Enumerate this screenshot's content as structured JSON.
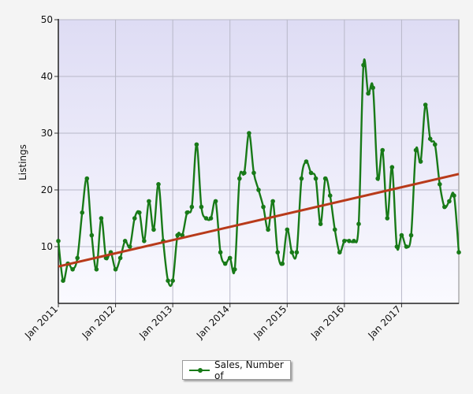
{
  "chart_data": {
    "type": "line",
    "ylabel": "Listings",
    "ylim": [
      0,
      50
    ],
    "yticks": [
      10,
      20,
      30,
      40,
      50
    ],
    "xlim": [
      0,
      84
    ],
    "x_tick_labels": [
      {
        "label": "Jan 2011",
        "x": 0
      },
      {
        "label": "Jan 2012",
        "x": 12
      },
      {
        "label": "Jan 2013",
        "x": 24
      },
      {
        "label": "Jan 2014",
        "x": 36
      },
      {
        "label": "Jan 2015",
        "x": 48
      },
      {
        "label": "Jan 2016",
        "x": 60
      },
      {
        "label": "Jan 2017",
        "x": 72
      }
    ],
    "grid": true,
    "legend_position": "bottom",
    "series": [
      {
        "name": "Sales, Number of",
        "color": "#187a18",
        "values": [
          11,
          4,
          7,
          6,
          8,
          16,
          22,
          12,
          6,
          15,
          8,
          9,
          6,
          8,
          11,
          10,
          15,
          16,
          11,
          18,
          13,
          21,
          11,
          4,
          4,
          12,
          12,
          16,
          17,
          28,
          17,
          15,
          15,
          18,
          9,
          7,
          8,
          6,
          22,
          23,
          30,
          23,
          20,
          17,
          13,
          18,
          9,
          7,
          13,
          9,
          9,
          22,
          25,
          23,
          22,
          14,
          22,
          19,
          13,
          9,
          11,
          11,
          11,
          14,
          42,
          37,
          38,
          22,
          27,
          15,
          24,
          10,
          12,
          10,
          12,
          27,
          25,
          35,
          29,
          28,
          21,
          17,
          18,
          19,
          9
        ]
      }
    ],
    "trendline": {
      "color": "#b83a1a",
      "start": 6.5,
      "end": 22.8
    }
  },
  "legend": {
    "label": "Sales, Number of"
  }
}
